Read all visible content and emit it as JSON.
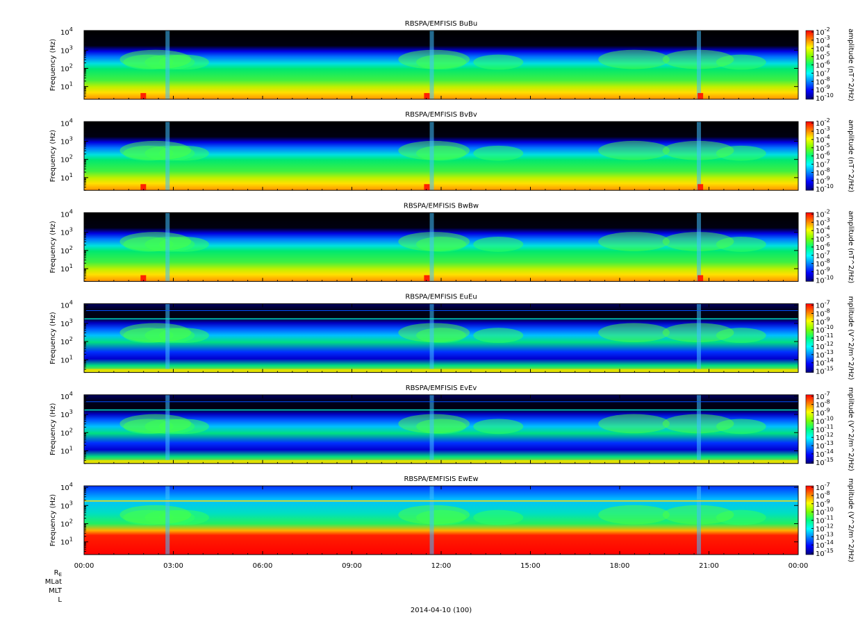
{
  "figure": {
    "date_label": "2014-04-10 (100)",
    "ephemeris_labels": [
      "R",
      "MLat",
      "MLT",
      "L"
    ],
    "ephemeris_subscript": "E",
    "time_ticks": [
      "00:00",
      "03:00",
      "06:00",
      "09:00",
      "12:00",
      "15:00",
      "18:00",
      "21:00",
      "00:00"
    ],
    "colorbar_palette": [
      "#00007f",
      "#0000ff",
      "#007fff",
      "#00ffff",
      "#00ff7f",
      "#7fff00",
      "#ffff00",
      "#ff7f00",
      "#ff0000"
    ]
  },
  "chart_data": [
    {
      "type": "heatmap",
      "title": "RBSPA/EMFISIS  BuBu",
      "ylabel": "Frequency (Hz)",
      "yscale": "log",
      "ylim": [
        2,
        12000
      ],
      "ytick_labels": [
        "10",
        "10",
        "10",
        "10"
      ],
      "ytick_exponents": [
        "4",
        "3",
        "2",
        "1"
      ],
      "xlim": [
        "00:00",
        "24:00"
      ],
      "colorbar_label": "amplitude (nT^2/Hz)",
      "colorbar_scale": "log",
      "colorbar_range": [
        1e-10,
        0.01
      ],
      "colorbar_tick_labels": [
        "10",
        "10",
        "10",
        "10",
        "10",
        "10",
        "10",
        "10",
        "10"
      ],
      "colorbar_tick_exponents": [
        "-2",
        "-3",
        "-4",
        "-5",
        "-6",
        "-7",
        "-8",
        "-9",
        "-10"
      ]
    },
    {
      "type": "heatmap",
      "title": "RBSPA/EMFISIS  BvBv",
      "ylabel": "Frequency (Hz)",
      "yscale": "log",
      "ylim": [
        2,
        12000
      ],
      "ytick_labels": [
        "10",
        "10",
        "10",
        "10"
      ],
      "ytick_exponents": [
        "4",
        "3",
        "2",
        "1"
      ],
      "xlim": [
        "00:00",
        "24:00"
      ],
      "colorbar_label": "amplitude (nT^2/Hz)",
      "colorbar_scale": "log",
      "colorbar_range": [
        1e-10,
        0.01
      ],
      "colorbar_tick_labels": [
        "10",
        "10",
        "10",
        "10",
        "10",
        "10",
        "10",
        "10",
        "10"
      ],
      "colorbar_tick_exponents": [
        "-2",
        "-3",
        "-4",
        "-5",
        "-6",
        "-7",
        "-8",
        "-9",
        "-10"
      ]
    },
    {
      "type": "heatmap",
      "title": "RBSPA/EMFISIS  BwBw",
      "ylabel": "Frequency (Hz)",
      "yscale": "log",
      "ylim": [
        2,
        12000
      ],
      "ytick_labels": [
        "10",
        "10",
        "10",
        "10"
      ],
      "ytick_exponents": [
        "4",
        "3",
        "2",
        "1"
      ],
      "xlim": [
        "00:00",
        "24:00"
      ],
      "colorbar_label": "amplitude (nT^2/Hz)",
      "colorbar_scale": "log",
      "colorbar_range": [
        1e-10,
        0.01
      ],
      "colorbar_tick_labels": [
        "10",
        "10",
        "10",
        "10",
        "10",
        "10",
        "10",
        "10",
        "10"
      ],
      "colorbar_tick_exponents": [
        "-2",
        "-3",
        "-4",
        "-5",
        "-6",
        "-7",
        "-8",
        "-9",
        "-10"
      ]
    },
    {
      "type": "heatmap",
      "title": "RBSPA/EMFISIS  EuEu",
      "ylabel": "Frequency (Hz)",
      "yscale": "log",
      "ylim": [
        2,
        12000
      ],
      "ytick_labels": [
        "10",
        "10",
        "10",
        "10"
      ],
      "ytick_exponents": [
        "4",
        "3",
        "2",
        "1"
      ],
      "xlim": [
        "00:00",
        "24:00"
      ],
      "colorbar_label": "mplitude (V^2/m^2/Hz)",
      "colorbar_scale": "log",
      "colorbar_range": [
        1e-15,
        1e-07
      ],
      "colorbar_tick_labels": [
        "10",
        "10",
        "10",
        "10",
        "10",
        "10",
        "10",
        "10",
        "10"
      ],
      "colorbar_tick_exponents": [
        "-7",
        "-8",
        "-9",
        "-10",
        "-11",
        "-12",
        "-13",
        "-14",
        "-15"
      ]
    },
    {
      "type": "heatmap",
      "title": "RBSPA/EMFISIS  EvEv",
      "ylabel": "Frequency (Hz)",
      "yscale": "log",
      "ylim": [
        2,
        12000
      ],
      "ytick_labels": [
        "10",
        "10",
        "10",
        "10"
      ],
      "ytick_exponents": [
        "4",
        "3",
        "2",
        "1"
      ],
      "xlim": [
        "00:00",
        "24:00"
      ],
      "colorbar_label": "mplitude (V^2/m^2/Hz)",
      "colorbar_scale": "log",
      "colorbar_range": [
        1e-15,
        1e-07
      ],
      "colorbar_tick_labels": [
        "10",
        "10",
        "10",
        "10",
        "10",
        "10",
        "10",
        "10",
        "10"
      ],
      "colorbar_tick_exponents": [
        "-7",
        "-8",
        "-9",
        "-10",
        "-11",
        "-12",
        "-13",
        "-14",
        "-15"
      ]
    },
    {
      "type": "heatmap",
      "title": "RBSPA/EMFISIS  EwEw",
      "ylabel": "Frequency (Hz)",
      "yscale": "log",
      "ylim": [
        2,
        12000
      ],
      "ytick_labels": [
        "10",
        "10",
        "10",
        "10"
      ],
      "ytick_exponents": [
        "4",
        "3",
        "2",
        "1"
      ],
      "xlim": [
        "00:00",
        "24:00"
      ],
      "colorbar_label": "mplitude (V^2/m^2/Hz)",
      "colorbar_scale": "log",
      "colorbar_range": [
        1e-15,
        1e-07
      ],
      "colorbar_tick_labels": [
        "10",
        "10",
        "10",
        "10",
        "10",
        "10",
        "10",
        "10",
        "10"
      ],
      "colorbar_tick_exponents": [
        "-7",
        "-8",
        "-9",
        "-10",
        "-11",
        "-12",
        "-13",
        "-14",
        "-15"
      ]
    }
  ]
}
